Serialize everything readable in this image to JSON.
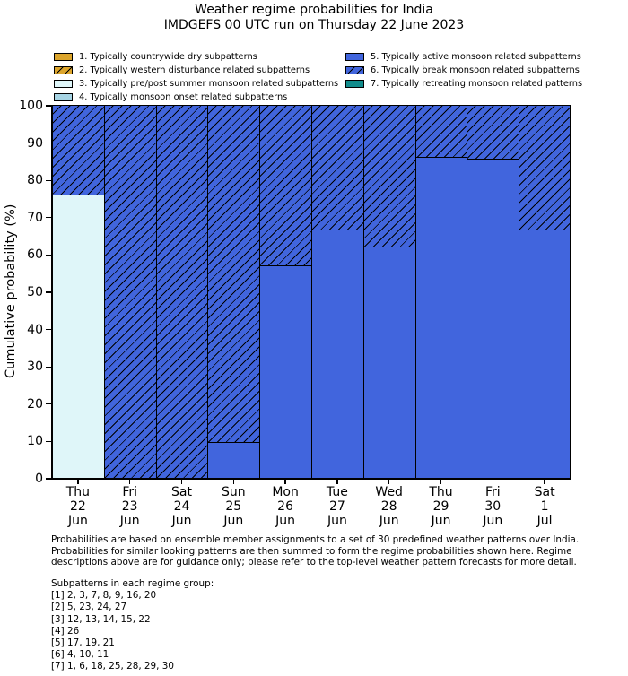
{
  "title": "Weather regime probabilities for India",
  "subtitle": "IMDGEFS 00 UTC run on Thursday 22 June 2023",
  "chart_data": {
    "type": "bar",
    "stacked": true,
    "title": "Weather regime probabilities for India",
    "subtitle": "IMDGEFS 00 UTC run on Thursday 22 June 2023",
    "xlabel": "",
    "ylabel": "Cumulative probability (%)",
    "ylim": [
      0,
      100
    ],
    "yticks": [
      0,
      10,
      20,
      30,
      40,
      50,
      60,
      70,
      80,
      90,
      100
    ],
    "grid": false,
    "legend_position": "upper-left, two columns above plot",
    "categories": [
      [
        "Thu",
        "22",
        "Jun"
      ],
      [
        "Fri",
        "23",
        "Jun"
      ],
      [
        "Sat",
        "24",
        "Jun"
      ],
      [
        "Sun",
        "25",
        "Jun"
      ],
      [
        "Mon",
        "26",
        "Jun"
      ],
      [
        "Tue",
        "27",
        "Jun"
      ],
      [
        "Wed",
        "28",
        "Jun"
      ],
      [
        "Thu",
        "29",
        "Jun"
      ],
      [
        "Fri",
        "30",
        "Jun"
      ],
      [
        "Sat",
        "1",
        "Jul"
      ]
    ],
    "series": [
      {
        "name": "1. Typically countrywide dry subpatterns",
        "color": "#DCA52C",
        "hatch": false,
        "values": [
          0,
          0,
          0,
          0,
          0,
          0,
          0,
          0,
          0,
          0
        ]
      },
      {
        "name": "2. Typically western disturbance related subpatterns",
        "color": "#DCA52C",
        "hatch": true,
        "values": [
          0,
          0,
          0,
          0,
          0,
          0,
          0,
          0,
          0,
          0
        ]
      },
      {
        "name": "3. Typically pre/post summer monsoon related subpatterns",
        "color": "#DFF6F9",
        "hatch": false,
        "values": [
          76,
          0,
          0,
          0,
          0,
          0,
          0,
          0,
          0,
          0
        ]
      },
      {
        "name": "4. Typically monsoon onset related subpatterns",
        "color": "#A6D4E4",
        "hatch": false,
        "values": [
          0,
          0,
          0,
          0,
          0,
          0,
          0,
          0,
          0,
          0
        ]
      },
      {
        "name": "5. Typically active monsoon related subpatterns",
        "color": "#4165DD",
        "hatch": false,
        "values": [
          0,
          0,
          0,
          9.5,
          57,
          66.5,
          62,
          86,
          85.5,
          66.5
        ]
      },
      {
        "name": "6. Typically break monsoon related subpatterns",
        "color": "#4165DD",
        "hatch": true,
        "values": [
          24,
          100,
          100,
          90.5,
          43,
          33.5,
          38,
          14,
          14.5,
          33.5
        ]
      },
      {
        "name": "7. Typically retreating monsoon related patterns",
        "color": "#128C8C",
        "hatch": false,
        "values": [
          0,
          0,
          0,
          0,
          0,
          0,
          0,
          0,
          0,
          0
        ]
      }
    ]
  },
  "footnote": {
    "lines": [
      "Probabilities are based on ensemble member assignments to a set of 30 predefined weather patterns over India.",
      "Probabilities for similar looking patterns are then summed to form the regime probabilities shown here. Regime",
      "descriptions above are for guidance only; please refer to the top-level weather pattern forecasts for more detail."
    ]
  },
  "subpatterns": {
    "heading": "Subpatterns in each regime group:",
    "lines": [
      "[1] 2, 3, 7, 8, 9, 16, 20",
      "[2] 5, 23, 24, 27",
      "[3] 12, 13, 14, 15, 22",
      "[4] 26",
      "[5] 17, 19, 21",
      "[6] 4, 10, 11",
      "[7] 1, 6, 18, 25, 28, 29, 30"
    ]
  }
}
